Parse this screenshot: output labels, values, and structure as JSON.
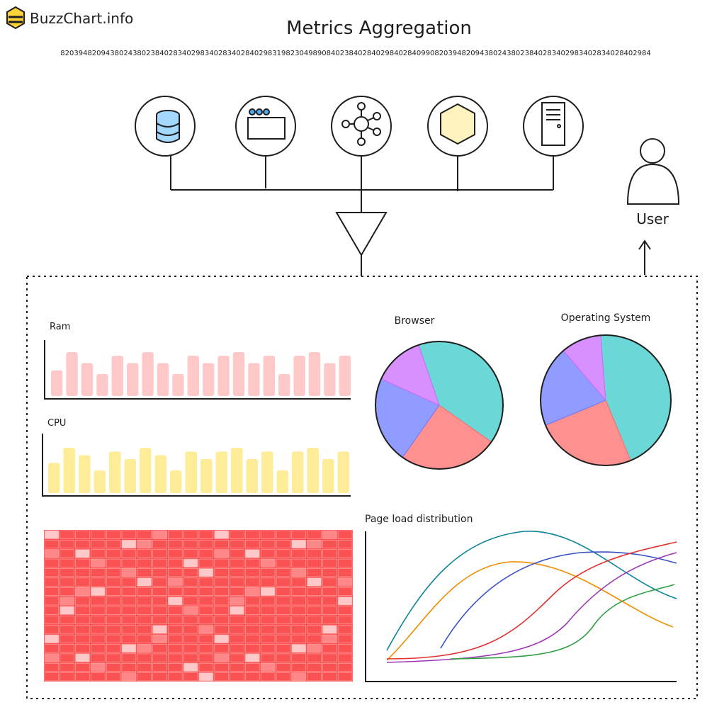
{
  "header": {
    "logo": "BuzzChart.info",
    "title": "Metrics Aggregation",
    "serial": "82039482094380243802384028340298340283402840298319823049890840238402840298402840990820394820943802438023840283402983402834028402984"
  },
  "user": {
    "label": "User"
  },
  "ram": {
    "title": "Ram",
    "color": "#ffc9c9",
    "values": [
      35,
      60,
      45,
      30,
      55,
      45,
      60,
      45,
      30,
      55,
      45,
      55,
      60,
      45,
      55,
      30,
      55,
      60,
      45,
      55
    ]
  },
  "cpu": {
    "title": "CPU",
    "color": "#ffec99",
    "values": [
      40,
      60,
      50,
      30,
      55,
      45,
      60,
      50,
      30,
      55,
      45,
      55,
      60,
      45,
      55,
      30,
      55,
      60,
      45,
      55
    ]
  },
  "browser": {
    "title": "Browser",
    "values": [
      40,
      25,
      22,
      13
    ],
    "colors": [
      "#3bc9c9",
      "#ff6b6b",
      "#6b7bff",
      "#cc6bff"
    ]
  },
  "os": {
    "title": "Operating System",
    "values": [
      45,
      25,
      20,
      10
    ],
    "colors": [
      "#3bc9c9",
      "#ff6b6b",
      "#6b7bff",
      "#cc6bff"
    ]
  },
  "lines": {
    "title": "Page load distribution"
  }
}
